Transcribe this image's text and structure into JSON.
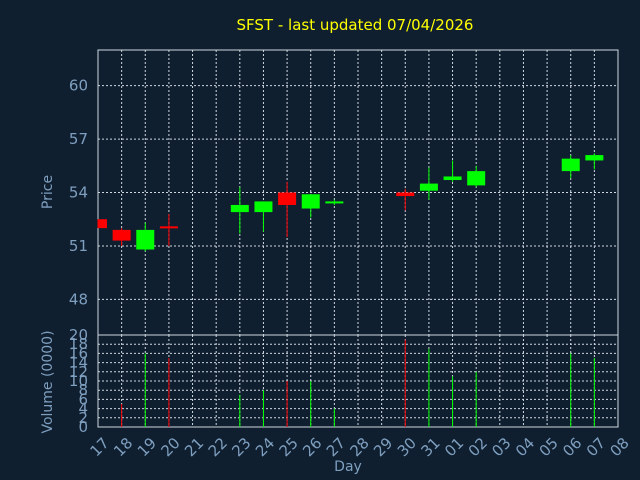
{
  "chart_data": {
    "type": "candlestick",
    "title": "SFST - last updated 07/04/2026",
    "xlabel": "Day",
    "price_axis": {
      "label": "Price",
      "ylim": [
        46,
        62
      ],
      "ticks": [
        48,
        51,
        54,
        57,
        60
      ]
    },
    "volume_axis": {
      "label": "Volume (0000)",
      "ylim": [
        0,
        20
      ],
      "ticks": [
        0,
        2,
        4,
        6,
        8,
        10,
        12,
        14,
        16,
        18,
        20
      ]
    },
    "x_ticks": [
      "17",
      "18",
      "19",
      "20",
      "21",
      "22",
      "23",
      "24",
      "25",
      "26",
      "27",
      "28",
      "29",
      "30",
      "31",
      "01",
      "02",
      "03",
      "04",
      "05",
      "06",
      "07",
      "08"
    ],
    "grid": true,
    "colors": {
      "up": "#00ff00",
      "down": "#ff0000",
      "title": "#ffff00",
      "axis": "#7f9fbf",
      "background": "#0f1f30"
    },
    "candles": [
      {
        "day": "17",
        "open": 52.5,
        "high": 52.5,
        "low": 52.0,
        "close": 52.0,
        "volume": 0
      },
      {
        "day": "18",
        "open": 51.9,
        "high": 52.0,
        "low": 51.0,
        "close": 51.3,
        "volume": 5
      },
      {
        "day": "19",
        "open": 50.8,
        "high": 52.3,
        "low": 50.7,
        "close": 51.9,
        "volume": 16
      },
      {
        "day": "20",
        "open": 52.1,
        "high": 52.8,
        "low": 51.0,
        "close": 52.0,
        "volume": 15
      },
      {
        "day": "23",
        "open": 52.9,
        "high": 54.3,
        "low": 51.7,
        "close": 53.3,
        "volume": 7
      },
      {
        "day": "24",
        "open": 52.9,
        "high": 53.5,
        "low": 51.8,
        "close": 53.5,
        "volume": 8
      },
      {
        "day": "25",
        "open": 54.0,
        "high": 54.6,
        "low": 51.5,
        "close": 53.3,
        "volume": 10
      },
      {
        "day": "26",
        "open": 53.1,
        "high": 53.9,
        "low": 52.6,
        "close": 53.9,
        "volume": 10
      },
      {
        "day": "27",
        "open": 53.4,
        "high": 53.6,
        "low": 53.3,
        "close": 53.5,
        "volume": 4
      },
      {
        "day": "30",
        "open": 54.0,
        "high": 54.2,
        "low": 53.0,
        "close": 53.8,
        "volume": 19
      },
      {
        "day": "31",
        "open": 54.1,
        "high": 55.4,
        "low": 53.6,
        "close": 54.5,
        "volume": 17
      },
      {
        "day": "01",
        "open": 54.7,
        "high": 55.8,
        "low": 54.6,
        "close": 54.9,
        "volume": 11
      },
      {
        "day": "02",
        "open": 54.4,
        "high": 55.5,
        "low": 54.3,
        "close": 55.2,
        "volume": 12
      },
      {
        "day": "06",
        "open": 55.2,
        "high": 56.1,
        "low": 54.8,
        "close": 55.9,
        "volume": 16
      },
      {
        "day": "07",
        "open": 55.8,
        "high": 56.2,
        "low": 55.3,
        "close": 56.1,
        "volume": 15
      }
    ]
  }
}
